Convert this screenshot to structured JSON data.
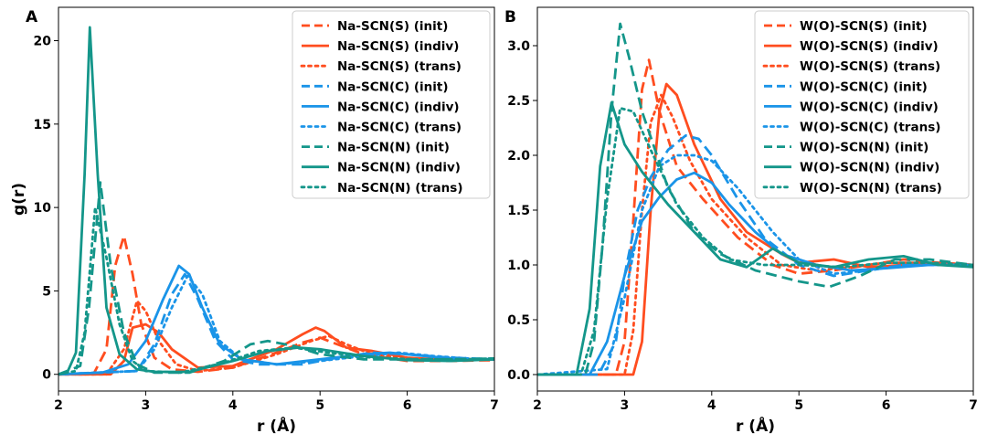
{
  "chart_data": [
    {
      "panel_label": "A",
      "type": "line",
      "xlabel": "r (Å)",
      "ylabel": "g(r)",
      "xlim": [
        2,
        7
      ],
      "ylim": [
        -1,
        22
      ],
      "xticks": [
        "2",
        "3",
        "4",
        "5",
        "6",
        "7"
      ],
      "yticks": [
        "0",
        "5",
        "10",
        "15",
        "20"
      ],
      "ytick_values": [
        0,
        5,
        10,
        15,
        20
      ],
      "xtick_values": [
        2,
        3,
        4,
        5,
        6,
        7
      ],
      "legend_position": "upper-right",
      "series": [
        {
          "name": "Na-SCN(S) (init)",
          "color": "#ff4d1f",
          "style": "dashed",
          "x": [
            2,
            2.4,
            2.55,
            2.65,
            2.75,
            2.85,
            2.95,
            3.1,
            3.3,
            3.6,
            4.0,
            4.5,
            4.8,
            5.0,
            5.2,
            5.5,
            6.0,
            6.5,
            7.0
          ],
          "y": [
            0,
            0,
            1.5,
            6.5,
            8.3,
            6.0,
            3.0,
            1.0,
            0.3,
            0.15,
            0.4,
            1.3,
            1.9,
            2.2,
            1.8,
            1.2,
            0.8,
            0.8,
            0.85
          ]
        },
        {
          "name": "Na-SCN(S) (indiv)",
          "color": "#ff4d1f",
          "style": "solid",
          "x": [
            2,
            2.6,
            2.75,
            2.85,
            3.0,
            3.15,
            3.3,
            3.6,
            4.0,
            4.5,
            4.8,
            4.95,
            5.05,
            5.3,
            5.6,
            6.0,
            6.5,
            7.0
          ],
          "y": [
            0,
            0,
            0.8,
            2.8,
            3.0,
            2.5,
            1.5,
            0.4,
            0.5,
            1.5,
            2.4,
            2.8,
            2.6,
            1.6,
            1.4,
            1.0,
            0.85,
            0.9
          ]
        },
        {
          "name": "Na-SCN(S) (trans)",
          "color": "#ff4d1f",
          "style": "dotted",
          "x": [
            2,
            2.55,
            2.75,
            2.9,
            3.0,
            3.15,
            3.35,
            3.6,
            4.0,
            4.5,
            4.9,
            5.1,
            5.3,
            5.6,
            6.0,
            6.5,
            7.0
          ],
          "y": [
            0,
            0,
            1.5,
            4.4,
            3.8,
            2.0,
            0.6,
            0.2,
            0.4,
            1.2,
            2.0,
            2.3,
            1.8,
            1.2,
            0.9,
            0.85,
            0.9
          ]
        },
        {
          "name": "Na-SCN(C) (init)",
          "color": "#1a94e8",
          "style": "dashed",
          "x": [
            2,
            2.9,
            3.1,
            3.3,
            3.45,
            3.6,
            3.8,
            4.0,
            4.3,
            4.8,
            5.2,
            5.6,
            6.0,
            6.5,
            7.0
          ],
          "y": [
            0,
            0.2,
            1.8,
            4.8,
            6.0,
            4.5,
            2.0,
            0.9,
            0.6,
            0.6,
            1.0,
            1.3,
            1.2,
            1.0,
            0.9
          ]
        },
        {
          "name": "Na-SCN(C) (indiv)",
          "color": "#1a94e8",
          "style": "solid",
          "x": [
            2,
            2.5,
            2.8,
            3.0,
            3.2,
            3.38,
            3.5,
            3.65,
            3.85,
            4.1,
            4.5,
            5.0,
            5.5,
            5.8,
            6.2,
            6.6,
            7.0
          ],
          "y": [
            0,
            0.1,
            0.6,
            2.0,
            4.5,
            6.5,
            6.0,
            4.0,
            1.8,
            0.9,
            0.6,
            0.9,
            1.2,
            1.3,
            1.1,
            0.9,
            0.9
          ]
        },
        {
          "name": "Na-SCN(C) (trans)",
          "color": "#1a94e8",
          "style": "dotted",
          "x": [
            2,
            2.9,
            3.1,
            3.3,
            3.48,
            3.65,
            3.85,
            4.1,
            4.5,
            5.0,
            5.5,
            5.9,
            6.3,
            6.7,
            7.0
          ],
          "y": [
            0,
            0.2,
            1.5,
            4.0,
            5.9,
            4.8,
            2.0,
            0.9,
            0.6,
            0.8,
            1.1,
            1.3,
            1.1,
            0.95,
            0.9
          ]
        },
        {
          "name": "Na-SCN(N) (init)",
          "color": "#14968a",
          "style": "dashed",
          "x": [
            2,
            2.25,
            2.35,
            2.48,
            2.6,
            2.75,
            2.9,
            3.1,
            3.5,
            3.9,
            4.2,
            4.4,
            4.7,
            5.0,
            5.5,
            6.0,
            6.5,
            7.0
          ],
          "y": [
            0,
            0.5,
            4.0,
            11.5,
            6.5,
            2.5,
            0.6,
            0.1,
            0.1,
            0.8,
            1.8,
            2.0,
            1.7,
            1.2,
            0.9,
            0.9,
            0.9,
            0.95
          ]
        },
        {
          "name": "Na-SCN(N) (indiv)",
          "color": "#14968a",
          "style": "solid",
          "x": [
            2,
            2.1,
            2.2,
            2.3,
            2.36,
            2.45,
            2.55,
            2.7,
            2.9,
            3.1,
            3.5,
            4.0,
            4.4,
            4.75,
            5.0,
            5.5,
            6.0,
            6.5,
            7.0
          ],
          "y": [
            0,
            0.1,
            1.3,
            12.0,
            20.8,
            12.0,
            4.0,
            1.2,
            0.3,
            0.15,
            0.15,
            0.8,
            1.4,
            1.6,
            1.5,
            1.1,
            0.85,
            0.8,
            0.9
          ]
        },
        {
          "name": "Na-SCN(N) (trans)",
          "color": "#14968a",
          "style": "dotted",
          "x": [
            2,
            2.2,
            2.3,
            2.42,
            2.55,
            2.7,
            2.85,
            3.0,
            3.4,
            3.9,
            4.3,
            4.7,
            5.1,
            5.6,
            6.1,
            6.6,
            7.0
          ],
          "y": [
            0,
            0.2,
            2.5,
            10.0,
            7.0,
            3.0,
            0.8,
            0.2,
            0.1,
            0.7,
            1.4,
            1.6,
            1.3,
            1.0,
            0.9,
            0.9,
            0.95
          ]
        }
      ]
    },
    {
      "panel_label": "B",
      "type": "line",
      "xlabel": "r (Å)",
      "ylabel": "",
      "xlim": [
        2,
        7
      ],
      "ylim": [
        -0.15,
        3.35
      ],
      "xticks": [
        "2",
        "3",
        "4",
        "5",
        "6",
        "7"
      ],
      "yticks": [
        "0.0",
        "0.5",
        "1.0",
        "1.5",
        "2.0",
        "2.5",
        "3.0"
      ],
      "ytick_values": [
        0,
        0.5,
        1.0,
        1.5,
        2.0,
        2.5,
        3.0
      ],
      "xtick_values": [
        2,
        3,
        4,
        5,
        6,
        7
      ],
      "legend_position": "upper-right",
      "series": [
        {
          "name": "W(O)-SCN(S) (init)",
          "color": "#ff4d1f",
          "style": "dashed",
          "x": [
            2,
            2.9,
            3.0,
            3.1,
            3.2,
            3.28,
            3.4,
            3.6,
            3.9,
            4.3,
            4.7,
            5.0,
            5.4,
            5.8,
            6.2,
            6.6,
            7.0
          ],
          "y": [
            0,
            0,
            0.3,
            1.4,
            2.6,
            2.87,
            2.4,
            1.9,
            1.6,
            1.25,
            1.0,
            0.92,
            0.95,
            1.0,
            1.05,
            1.02,
            1.0
          ]
        },
        {
          "name": "W(O)-SCN(S) (indiv)",
          "color": "#ff4d1f",
          "style": "solid",
          "x": [
            2,
            3.1,
            3.2,
            3.3,
            3.4,
            3.48,
            3.6,
            3.8,
            4.1,
            4.4,
            4.8,
            5.0,
            5.4,
            5.8,
            6.2,
            6.6,
            7.0
          ],
          "y": [
            0,
            0,
            0.3,
            1.5,
            2.4,
            2.65,
            2.55,
            2.1,
            1.6,
            1.3,
            1.1,
            1.02,
            1.05,
            0.98,
            1.0,
            1.02,
            1.0
          ]
        },
        {
          "name": "W(O)-SCN(S) (trans)",
          "color": "#ff4d1f",
          "style": "dotted",
          "x": [
            2,
            3.0,
            3.1,
            3.2,
            3.3,
            3.42,
            3.55,
            3.75,
            4.0,
            4.4,
            4.8,
            5.2,
            5.6,
            6.0,
            6.5,
            7.0
          ],
          "y": [
            0,
            0,
            0.4,
            1.5,
            2.3,
            2.55,
            2.35,
            1.95,
            1.6,
            1.25,
            1.0,
            0.95,
            0.98,
            1.02,
            1.02,
            1.0
          ]
        },
        {
          "name": "W(O)-SCN(C) (init)",
          "color": "#1a94e8",
          "style": "dashed",
          "x": [
            2,
            2.7,
            2.9,
            3.0,
            3.15,
            3.3,
            3.5,
            3.7,
            3.85,
            4.0,
            4.3,
            4.6,
            5.0,
            5.4,
            5.8,
            6.2,
            7.0
          ],
          "y": [
            0,
            0,
            0.3,
            0.9,
            1.5,
            1.8,
            2.05,
            2.18,
            2.15,
            2.0,
            1.6,
            1.25,
            1.0,
            0.9,
            0.95,
            1.0,
            1.0
          ]
        },
        {
          "name": "W(O)-SCN(C) (indiv)",
          "color": "#1a94e8",
          "style": "solid",
          "x": [
            2,
            2.6,
            2.8,
            3.0,
            3.2,
            3.4,
            3.6,
            3.8,
            4.0,
            4.2,
            4.5,
            4.8,
            5.2,
            5.6,
            6.0,
            6.5,
            7.0
          ],
          "y": [
            0,
            0,
            0.3,
            0.9,
            1.4,
            1.62,
            1.78,
            1.84,
            1.75,
            1.55,
            1.3,
            1.1,
            1.0,
            0.95,
            0.97,
            1.0,
            1.0
          ]
        },
        {
          "name": "W(O)-SCN(C) (trans)",
          "color": "#1a94e8",
          "style": "dotted",
          "x": [
            2,
            2.8,
            3.0,
            3.2,
            3.4,
            3.6,
            3.8,
            4.0,
            4.3,
            4.7,
            5.0,
            5.4,
            5.8,
            6.2,
            7.0
          ],
          "y": [
            0,
            0.05,
            0.7,
            1.5,
            1.9,
            2.0,
            2.0,
            1.95,
            1.7,
            1.3,
            1.05,
            0.92,
            0.95,
            1.0,
            1.0
          ]
        },
        {
          "name": "W(O)-SCN(N) (init)",
          "color": "#14968a",
          "style": "dashed",
          "x": [
            2,
            2.55,
            2.65,
            2.75,
            2.85,
            2.95,
            3.05,
            3.2,
            3.5,
            3.8,
            4.1,
            4.5,
            5.0,
            5.35,
            5.7,
            6.1,
            6.5,
            7.0
          ],
          "y": [
            0,
            0,
            0.3,
            1.2,
            2.4,
            3.2,
            2.9,
            2.4,
            1.7,
            1.3,
            1.1,
            0.95,
            0.85,
            0.8,
            0.9,
            1.05,
            1.05,
            1.0
          ]
        },
        {
          "name": "W(O)-SCN(N) (indiv)",
          "color": "#14968a",
          "style": "solid",
          "x": [
            2,
            2.45,
            2.6,
            2.72,
            2.85,
            3.0,
            3.2,
            3.5,
            3.8,
            4.1,
            4.4,
            4.7,
            5.0,
            5.4,
            5.8,
            6.2,
            6.6,
            7.0
          ],
          "y": [
            0,
            0,
            0.6,
            1.9,
            2.48,
            2.1,
            1.85,
            1.55,
            1.3,
            1.05,
            0.98,
            1.15,
            1.02,
            0.98,
            1.05,
            1.08,
            1.0,
            0.98
          ]
        },
        {
          "name": "W(O)-SCN(N) (trans)",
          "color": "#14968a",
          "style": "dotted",
          "x": [
            2,
            2.5,
            2.65,
            2.8,
            2.95,
            3.1,
            3.3,
            3.6,
            3.9,
            4.2,
            4.6,
            5.0,
            5.5,
            6.0,
            6.5,
            7.0
          ],
          "y": [
            0,
            0,
            0.4,
            1.6,
            2.43,
            2.4,
            2.05,
            1.55,
            1.25,
            1.05,
            1.0,
            1.0,
            0.98,
            1.02,
            1.02,
            1.0
          ]
        }
      ]
    }
  ]
}
